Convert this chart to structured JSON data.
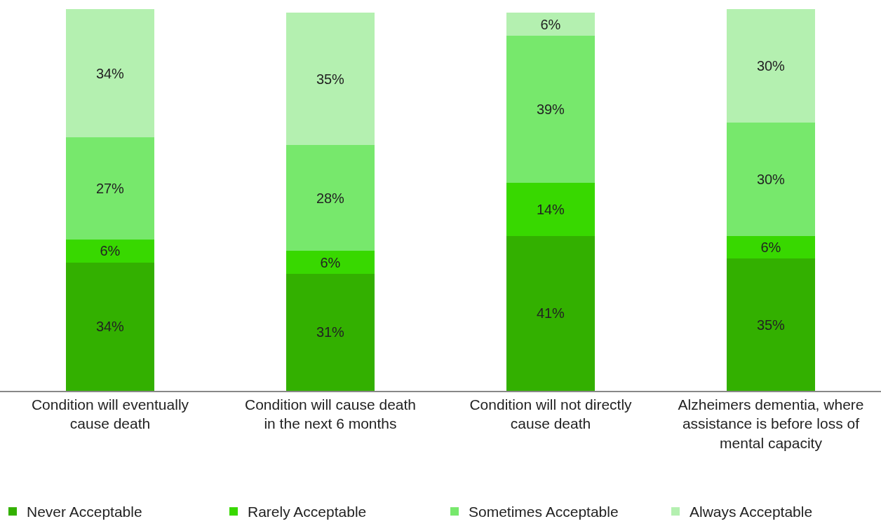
{
  "chart_data": {
    "type": "bar",
    "stacked": true,
    "tick_labels": "x",
    "data_labels": true,
    "legend": "bottom",
    "categories": [
      "Condition will eventually cause death",
      "Condition will cause death in the next 6 months",
      "Condition will not directly cause death",
      "Alzheimers dementia, where assistance is before loss of mental capacity"
    ],
    "series": [
      {
        "name": "Never Acceptable",
        "color": "#33b000",
        "values": [
          34,
          31,
          41,
          35
        ],
        "value_labels": [
          "34%",
          "31%",
          "41%",
          "35%"
        ]
      },
      {
        "name": "Rarely Acceptable",
        "color": "#38d800",
        "values": [
          6,
          6,
          14,
          6
        ],
        "value_labels": [
          "6%",
          "6%",
          "14%",
          "6%"
        ]
      },
      {
        "name": "Sometimes Acceptable",
        "color": "#77e86c",
        "values": [
          27,
          28,
          39,
          30
        ],
        "value_labels": [
          "27%",
          "28%",
          "39%",
          "30%"
        ]
      },
      {
        "name": "Always Acceptable",
        "color": "#b4f0b0",
        "values": [
          34,
          35,
          6,
          30
        ],
        "value_labels": [
          "34%",
          "35%",
          "6%",
          "30%"
        ]
      }
    ]
  }
}
